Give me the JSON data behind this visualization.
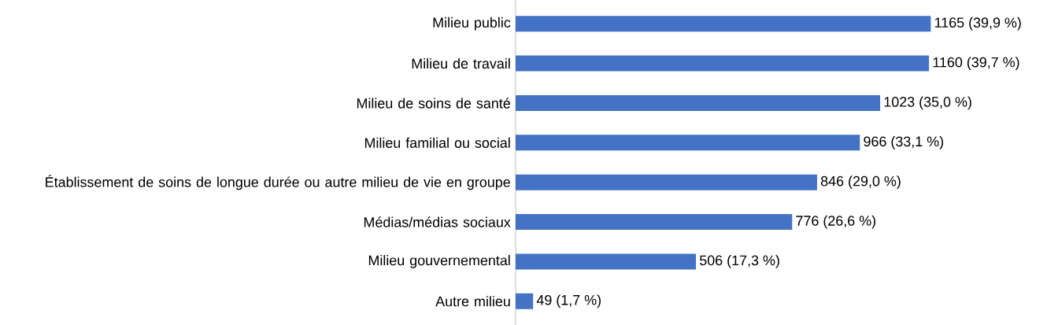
{
  "chart_data": {
    "type": "bar",
    "orientation": "horizontal",
    "categories": [
      "Milieu public",
      "Milieu de travail",
      "Milieu de soins de santé",
      "Milieu familial ou social",
      "Établissement de soins de longue durée ou autre milieu de vie en groupe",
      "Médias/médias sociaux",
      "Milieu gouvernemental",
      "Autre milieu"
    ],
    "values": [
      1165,
      1160,
      1023,
      966,
      846,
      776,
      506,
      49
    ],
    "value_labels": [
      "1165 (39,9 %)",
      "1160 (39,7 %)",
      "1023 (35,0 %)",
      "966 (33,1 %)",
      "846 (29,0 %)",
      "776 (26,6 %)",
      "506 (17,3 %)",
      "49 (1,7 %)"
    ],
    "color": "#4472c4",
    "tick_labels": "y"
  }
}
